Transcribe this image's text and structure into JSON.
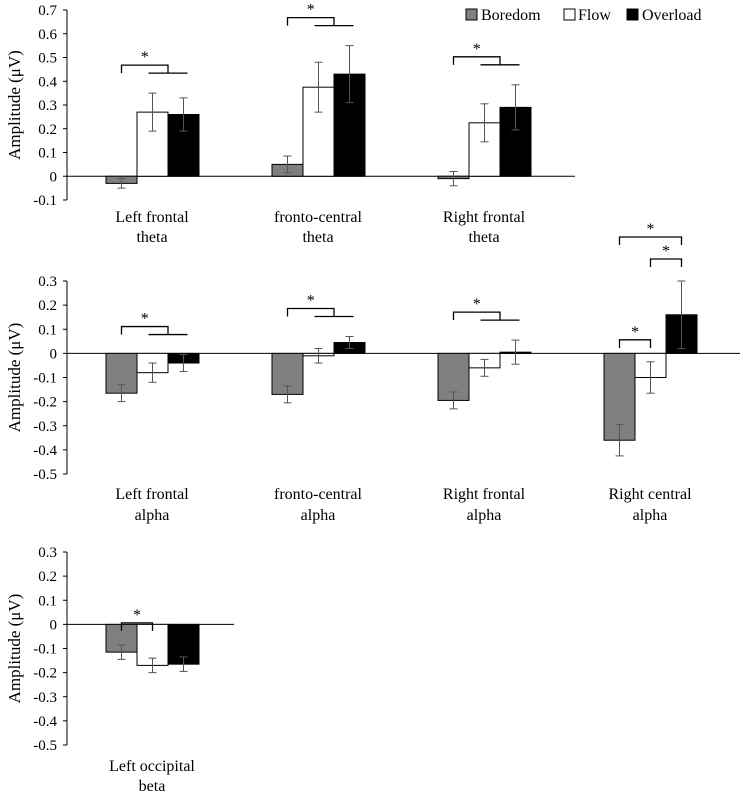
{
  "legend": {
    "entries": [
      {
        "name": "Boredom",
        "color": "#808080"
      },
      {
        "name": "Flow",
        "color": "#ffffff"
      },
      {
        "name": "Overload",
        "color": "#000000"
      }
    ]
  },
  "chart_data": [
    {
      "type": "bar",
      "title": "",
      "ylabel": "Amplitude (μV)",
      "xlabel": "",
      "ylim": [
        -0.1,
        0.7
      ],
      "yticks": [
        -0.1,
        0,
        0.1,
        0.2,
        0.3,
        0.4,
        0.5,
        0.6,
        0.7
      ],
      "categories": [
        [
          "Left frontal",
          "theta"
        ],
        [
          "fronto-central",
          "theta"
        ],
        [
          "Right frontal",
          "theta"
        ]
      ],
      "series": [
        {
          "name": "Boredom",
          "values": [
            -0.03,
            0.05,
            -0.01
          ],
          "errors": [
            0.02,
            0.035,
            0.03
          ]
        },
        {
          "name": "Flow",
          "values": [
            0.27,
            0.375,
            0.225
          ],
          "errors": [
            0.08,
            0.105,
            0.08
          ]
        },
        {
          "name": "Overload",
          "values": [
            0.26,
            0.43,
            0.29
          ],
          "errors": [
            0.07,
            0.12,
            0.095
          ]
        }
      ],
      "significance": [
        {
          "category": 0,
          "type": "b-vs-fo",
          "label": "*"
        },
        {
          "category": 1,
          "type": "b-vs-fo",
          "label": "*"
        },
        {
          "category": 2,
          "type": "b-vs-fo",
          "label": "*"
        }
      ]
    },
    {
      "type": "bar",
      "title": "",
      "ylabel": "Amplitude (μV)",
      "xlabel": "",
      "ylim": [
        -0.5,
        0.3
      ],
      "yticks": [
        -0.5,
        -0.4,
        -0.3,
        -0.2,
        -0.1,
        0,
        0.1,
        0.2,
        0.3
      ],
      "categories": [
        [
          "Left frontal",
          "alpha"
        ],
        [
          "fronto-central",
          "alpha"
        ],
        [
          "Right frontal",
          "alpha"
        ],
        [
          "Right central",
          "alpha"
        ]
      ],
      "series": [
        {
          "name": "Boredom",
          "values": [
            -0.165,
            -0.17,
            -0.195,
            -0.36
          ],
          "errors": [
            0.035,
            0.035,
            0.035,
            0.065
          ]
        },
        {
          "name": "Flow",
          "values": [
            -0.08,
            -0.01,
            -0.06,
            -0.1
          ],
          "errors": [
            0.04,
            0.03,
            0.035,
            0.065
          ]
        },
        {
          "name": "Overload",
          "values": [
            -0.04,
            0.045,
            0.005,
            0.16
          ],
          "errors": [
            0.035,
            0.025,
            0.05,
            0.14
          ]
        }
      ],
      "significance": [
        {
          "category": 0,
          "type": "b-vs-fo",
          "label": "*"
        },
        {
          "category": 1,
          "type": "b-vs-fo",
          "label": "*"
        },
        {
          "category": 2,
          "type": "b-vs-fo",
          "label": "*"
        },
        {
          "category": 3,
          "type": "b-vs-f",
          "label": "*"
        },
        {
          "category": 3,
          "type": "f-vs-o",
          "label": "*"
        },
        {
          "category": 3,
          "type": "b-vs-o",
          "label": "*"
        }
      ]
    },
    {
      "type": "bar",
      "title": "",
      "ylabel": "Amplitude (μV)",
      "xlabel": "",
      "ylim": [
        -0.5,
        0.3
      ],
      "yticks": [
        -0.5,
        -0.4,
        -0.3,
        -0.2,
        -0.1,
        0,
        0.1,
        0.2,
        0.3
      ],
      "categories": [
        [
          "Left occipital",
          "beta"
        ]
      ],
      "series": [
        {
          "name": "Boredom",
          "values": [
            -0.115
          ],
          "errors": [
            0.03
          ]
        },
        {
          "name": "Flow",
          "values": [
            -0.17
          ],
          "errors": [
            0.03
          ]
        },
        {
          "name": "Overload",
          "values": [
            -0.165
          ],
          "errors": [
            0.03
          ]
        }
      ],
      "significance": [
        {
          "category": 0,
          "type": "b-vs-f",
          "label": "*"
        }
      ]
    }
  ]
}
